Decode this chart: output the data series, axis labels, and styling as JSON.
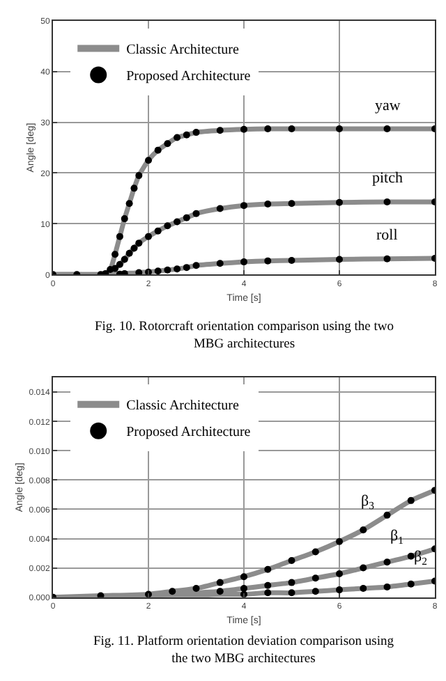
{
  "chart_data": [
    {
      "type": "line",
      "xlabel": "Time [s]",
      "ylabel": "Angle [deg]",
      "xlim": [
        0,
        8
      ],
      "xticks": [
        0,
        2,
        4,
        6,
        8
      ],
      "ylim": [
        0,
        50
      ],
      "yticks": [
        0,
        10,
        20,
        30,
        40,
        50
      ],
      "grid": true,
      "legend": "top left",
      "x": [
        0,
        0.5,
        1.0,
        1.1,
        1.2,
        1.3,
        1.4,
        1.5,
        1.6,
        1.7,
        1.8,
        2.0,
        2.2,
        2.4,
        2.6,
        2.8,
        3.0,
        3.5,
        4.0,
        4.5,
        5.0,
        6.0,
        7.0,
        8.0
      ],
      "series": [
        {
          "name": "Classic Architecture",
          "marker": "none",
          "color": "#8c8c8c",
          "values": [
            0,
            0,
            0,
            0.2,
            1.0,
            4.0,
            7.5,
            11,
            14,
            17,
            19.5,
            22.5,
            24.5,
            25.8,
            27,
            27.5,
            28,
            28.4,
            28.6,
            28.7,
            28.7,
            28.7,
            28.7,
            28.7
          ]
        },
        {
          "marker": "none",
          "color": "#8c8c8c",
          "values": [
            0,
            0,
            0,
            0,
            0.5,
            1.2,
            2.0,
            3.0,
            4.2,
            5.2,
            6.2,
            7.5,
            8.6,
            9.6,
            10.4,
            11.2,
            12,
            13,
            13.6,
            13.9,
            14,
            14.2,
            14.3,
            14.3
          ]
        },
        {
          "marker": "none",
          "color": "#8c8c8c",
          "values": [
            0,
            0,
            0,
            0,
            0,
            0.1,
            0.1,
            0.2,
            0.3,
            0.3,
            0.4,
            0.5,
            0.7,
            0.9,
            1.1,
            1.4,
            1.8,
            2.2,
            2.5,
            2.7,
            2.8,
            3.0,
            3.1,
            3.2
          ]
        },
        {
          "name": "Proposed Architecture",
          "type": "scatter",
          "marker": "circle",
          "color": "#000000",
          "values": [
            0,
            0,
            0,
            0.2,
            1.0,
            4.0,
            7.5,
            11,
            14,
            17,
            19.5,
            22.5,
            24.5,
            25.8,
            27,
            27.5,
            28,
            28.4,
            28.6,
            28.7,
            28.7,
            28.7,
            28.7,
            28.7
          ]
        },
        {
          "type": "scatter",
          "marker": "circle",
          "color": "#000000",
          "values": [
            null,
            null,
            null,
            null,
            null,
            1.2,
            2.0,
            3.0,
            4.2,
            5.2,
            6.2,
            7.5,
            8.6,
            9.6,
            10.4,
            11.2,
            12,
            13,
            13.6,
            13.9,
            14,
            14.2,
            14.3,
            14.3
          ]
        },
        {
          "type": "scatter",
          "marker": "circle",
          "color": "#000000",
          "values": [
            null,
            null,
            null,
            null,
            null,
            null,
            0.1,
            0.2,
            null,
            null,
            0.4,
            0.5,
            0.7,
            0.9,
            1.1,
            1.4,
            1.8,
            2.2,
            2.5,
            2.7,
            2.8,
            3.0,
            3.1,
            3.2
          ]
        }
      ],
      "annotations": [
        {
          "text": "yaw",
          "x": 7.0,
          "y": 28.7
        },
        {
          "text": "pitch",
          "x": 7.0,
          "y": 14.3
        },
        {
          "text": "roll",
          "x": 7.0,
          "y": 3.1
        },
        "Fig. 10. Rotorcraft orientation comparison using the two MBG architectures"
      ]
    },
    {
      "type": "line",
      "xlabel": "Time [s]",
      "ylabel": "Angle [deg]",
      "xlim": [
        0,
        8
      ],
      "xticks": [
        0,
        2,
        4,
        6,
        8
      ],
      "ylim": [
        0,
        0.015
      ],
      "yticks": [
        {
          "value": 0,
          "label": "0.000"
        },
        {
          "value": 0.002,
          "label": "0.002"
        },
        {
          "value": 0.004,
          "label": "0.004"
        },
        {
          "value": 0.006,
          "label": "0.006"
        },
        {
          "value": 0.008,
          "label": "0.008"
        },
        {
          "value": 0.01,
          "label": "0.010"
        },
        {
          "value": 0.012,
          "label": "0.012"
        },
        {
          "value": 0.014,
          "label": "0.014"
        }
      ],
      "grid": true,
      "legend": "top left",
      "x": [
        0,
        1,
        2,
        2.5,
        3,
        3.5,
        4,
        4.5,
        5,
        5.5,
        6,
        6.5,
        7,
        7.5,
        8
      ],
      "series": [
        {
          "name": "Classic Architecture",
          "marker": "none",
          "color": "#8c8c8c",
          "values": [
            0,
            0.0001,
            0.0002,
            0.0004,
            0.0006,
            0.001,
            0.0014,
            0.0019,
            0.0025,
            0.0031,
            0.0038,
            0.0046,
            0.0056,
            0.0066,
            0.0073
          ]
        },
        {
          "marker": "none",
          "color": "#8c8c8c",
          "values": [
            0,
            0,
            0.0001,
            0.0002,
            0.0003,
            0.0004,
            0.0006,
            0.0008,
            0.001,
            0.0013,
            0.0016,
            0.002,
            0.0024,
            0.0028,
            0.0033
          ]
        },
        {
          "marker": "none",
          "color": "#8c8c8c",
          "values": [
            0,
            0,
            0,
            0.0001,
            0.0001,
            0.0002,
            0.0002,
            0.0003,
            0.0003,
            0.0004,
            0.0005,
            0.0006,
            0.0007,
            0.0009,
            0.0011
          ]
        },
        {
          "name": "Proposed Architecture",
          "type": "scatter",
          "marker": "circle",
          "color": "#000000",
          "values": [
            0,
            0.0001,
            0.0002,
            0.0004,
            0.0006,
            0.001,
            0.0014,
            0.0019,
            0.0025,
            0.0031,
            0.0038,
            0.0046,
            0.0056,
            0.0066,
            0.0073
          ]
        },
        {
          "type": "scatter",
          "marker": "circle",
          "color": "#000000",
          "values": [
            null,
            null,
            null,
            null,
            null,
            0.0004,
            0.0006,
            0.0008,
            0.001,
            0.0013,
            0.0016,
            0.002,
            0.0024,
            0.0028,
            0.0033
          ]
        },
        {
          "type": "scatter",
          "marker": "circle",
          "color": "#000000",
          "values": [
            null,
            null,
            null,
            null,
            null,
            null,
            0.0002,
            0.0003,
            0.0003,
            0.0004,
            0.0005,
            0.0006,
            0.0007,
            0.0009,
            0.0011
          ]
        }
      ],
      "annotations": [
        {
          "text": "β$_{3}$",
          "x": 6.6,
          "y": 0.0048
        },
        {
          "text": "β$_{1}$",
          "x": 7.2,
          "y": 0.0025
        },
        {
          "text": "β$_{2}$",
          "x": 7.7,
          "y": 0.001
        },
        "Fig. 11. Platform orientation deviation comparison using the two MBG architectures"
      ]
    }
  ]
}
